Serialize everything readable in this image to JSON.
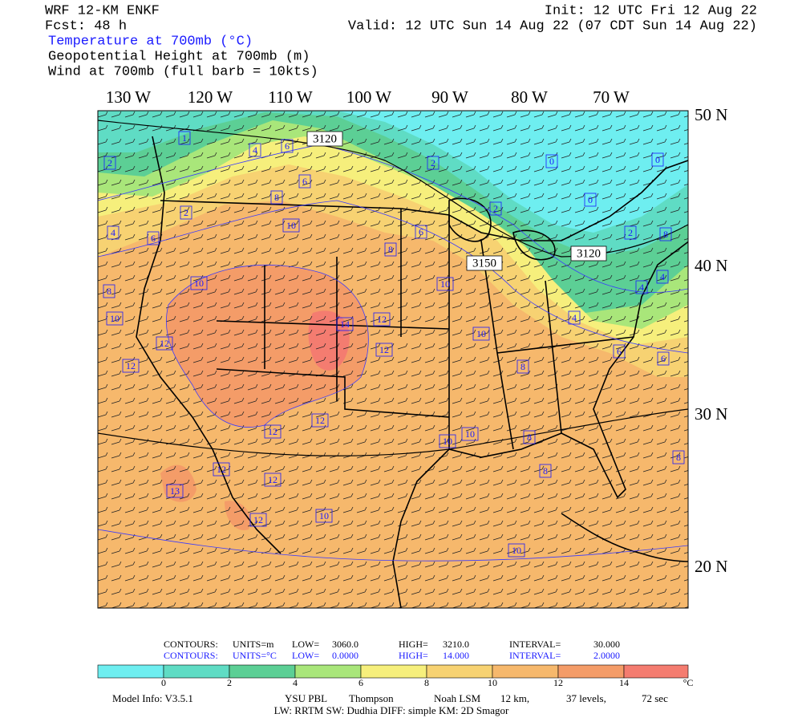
{
  "header": {
    "model": "WRF 12-KM ENKF",
    "init": "Init: 12 UTC Fri 12 Aug 22",
    "forecast": "Fcst:   48 h",
    "valid": "Valid: 12 UTC Sun 14 Aug 22 (07 CDT Sun 14 Aug 22)",
    "fields": [
      "Temperature at 700mb (°C)",
      "Geopotential Height at 700mb (m)",
      "Wind at 700mb (full barb = 10kts)"
    ]
  },
  "map": {
    "longitudes": [
      "130 W",
      "120 W",
      "110 W",
      "100 W",
      "90 W",
      "80 W",
      "70 W"
    ],
    "latitudes": [
      "50 N",
      "40 N",
      "30 N",
      "20 N"
    ],
    "height_labels": [
      "3120",
      "3150",
      "3120"
    ],
    "temperature_labels": [
      "1",
      "2",
      "4",
      "6",
      "6",
      "8",
      "2",
      "0",
      "0",
      "2",
      "0",
      "2",
      "4",
      "6",
      "6",
      "8",
      "10",
      "2",
      "8",
      "10",
      "10",
      "4",
      "4",
      "8",
      "10",
      "14",
      "12",
      "12",
      "12",
      "10",
      "4",
      "12",
      "6",
      "6",
      "8",
      "12",
      "12",
      "10",
      "10",
      "8",
      "8",
      "12",
      "12",
      "8",
      "13",
      "12",
      "10",
      "10"
    ]
  },
  "contours": {
    "rows": [
      [
        "CONTOURS:",
        "UNITS=m",
        "LOW=",
        "3060.0",
        "HIGH=",
        "3210.0",
        "INTERVAL=",
        "30.000"
      ],
      [
        "CONTOURS:",
        "UNITS=°C",
        "LOW=",
        "0.0000",
        "HIGH=",
        "14.000",
        "INTERVAL=",
        "2.0000"
      ]
    ]
  },
  "colorbar": {
    "labels": [
      "0",
      "2",
      "4",
      "6",
      "8",
      "10",
      "12",
      "14"
    ],
    "unit": "°C",
    "colors": [
      "#6eeef0",
      "#5fdcc4",
      "#5ccf95",
      "#a9e67a",
      "#f6ef7c",
      "#f7d272",
      "#f6b86c",
      "#f49c68",
      "#f47c70"
    ]
  },
  "model_info": {
    "line1": [
      "Model Info: V3.5.1",
      "YSU PBL",
      "Thompson",
      "Noah LSM",
      "12 km,",
      "37 levels,",
      "72 sec"
    ],
    "line2": "LW: RRTM  SW: Dudhia  DIFF: simple  KM: 2D Smagor"
  }
}
